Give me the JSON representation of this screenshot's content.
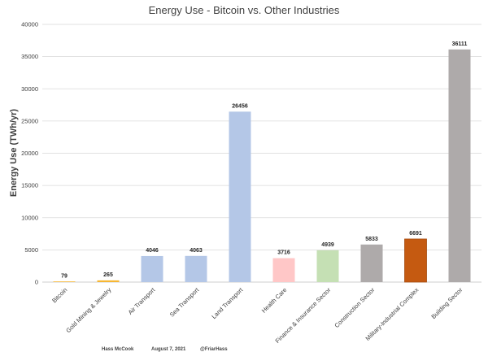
{
  "chart_data": {
    "type": "bar",
    "title": "Energy Use - Bitcoin vs. Other Industries",
    "xlabel": "",
    "ylabel": "Energy Use (TWh/yr)",
    "ylim": [
      0,
      40000
    ],
    "yticks": [
      0,
      5000,
      10000,
      15000,
      20000,
      25000,
      30000,
      35000,
      40000
    ],
    "grid": true,
    "legend": "none",
    "categories": [
      "Bitcoin",
      "Gold Mining & Jewelry",
      "Air Transport",
      "Sea Transport",
      "Land Transport",
      "Health Care",
      "Finance & Insurance Sector",
      "Construction Sector",
      "Military-Industrial Complex",
      "Building Sector"
    ],
    "values": [
      79,
      265,
      4046,
      4063,
      26456,
      3716,
      4939,
      5833,
      6691,
      36111
    ],
    "data_labels": [
      "79",
      "265",
      "4046",
      "4063",
      "26456",
      "3716",
      "4939",
      "5833",
      "6691",
      "36111"
    ],
    "colors": [
      "#f7b733",
      "#f7b733",
      "#b4c7e7",
      "#b4c7e7",
      "#b4c7e7",
      "#ffc7c7",
      "#c5e0b4",
      "#aeaaaa",
      "#c55a11",
      "#aeaaaa"
    ]
  },
  "footer": {
    "author": "Hass McCook",
    "date": "August 7, 2021",
    "handle": "@FriarHass"
  }
}
